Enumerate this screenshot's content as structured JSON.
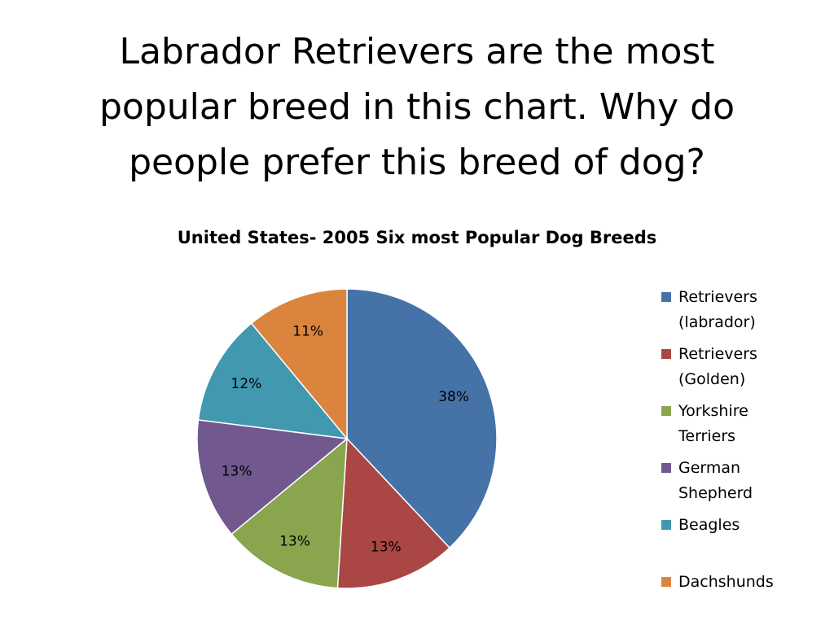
{
  "slide": {
    "title_lines": [
      "Labrador Retrievers are the most",
      "popular breed in this chart.  Why do",
      "people prefer this breed of dog?"
    ]
  },
  "chart_data": {
    "type": "pie",
    "title": "United States- 2005 Six most Popular Dog Breeds",
    "start_angle": "12 o'clock",
    "direction": "clockwise",
    "legend_position": "right",
    "slices": [
      {
        "name": "Retrievers (labrador)",
        "value": 38,
        "label": "38%",
        "color": "#4572A7",
        "legend_lines": [
          "Retrievers",
          "(labrador)"
        ]
      },
      {
        "name": "Retrievers (Golden)",
        "value": 13,
        "label": "13%",
        "color": "#AA4643",
        "legend_lines": [
          "Retrievers",
          "(Golden)"
        ]
      },
      {
        "name": "Yorkshire Terriers",
        "value": 13,
        "label": "13%",
        "color": "#89A54E",
        "legend_lines": [
          "Yorkshire",
          "Terriers"
        ]
      },
      {
        "name": "German Shepherd",
        "value": 13,
        "label": "13%",
        "color": "#71588F",
        "legend_lines": [
          "German",
          "Shepherd"
        ]
      },
      {
        "name": "Beagles",
        "value": 12,
        "label": "12%",
        "color": "#4198AF",
        "legend_lines": [
          "Beagles"
        ]
      },
      {
        "name": "Dachshunds",
        "value": 11,
        "label": "11%",
        "color": "#DB843D",
        "legend_lines": [
          "Dachshunds"
        ]
      }
    ]
  }
}
